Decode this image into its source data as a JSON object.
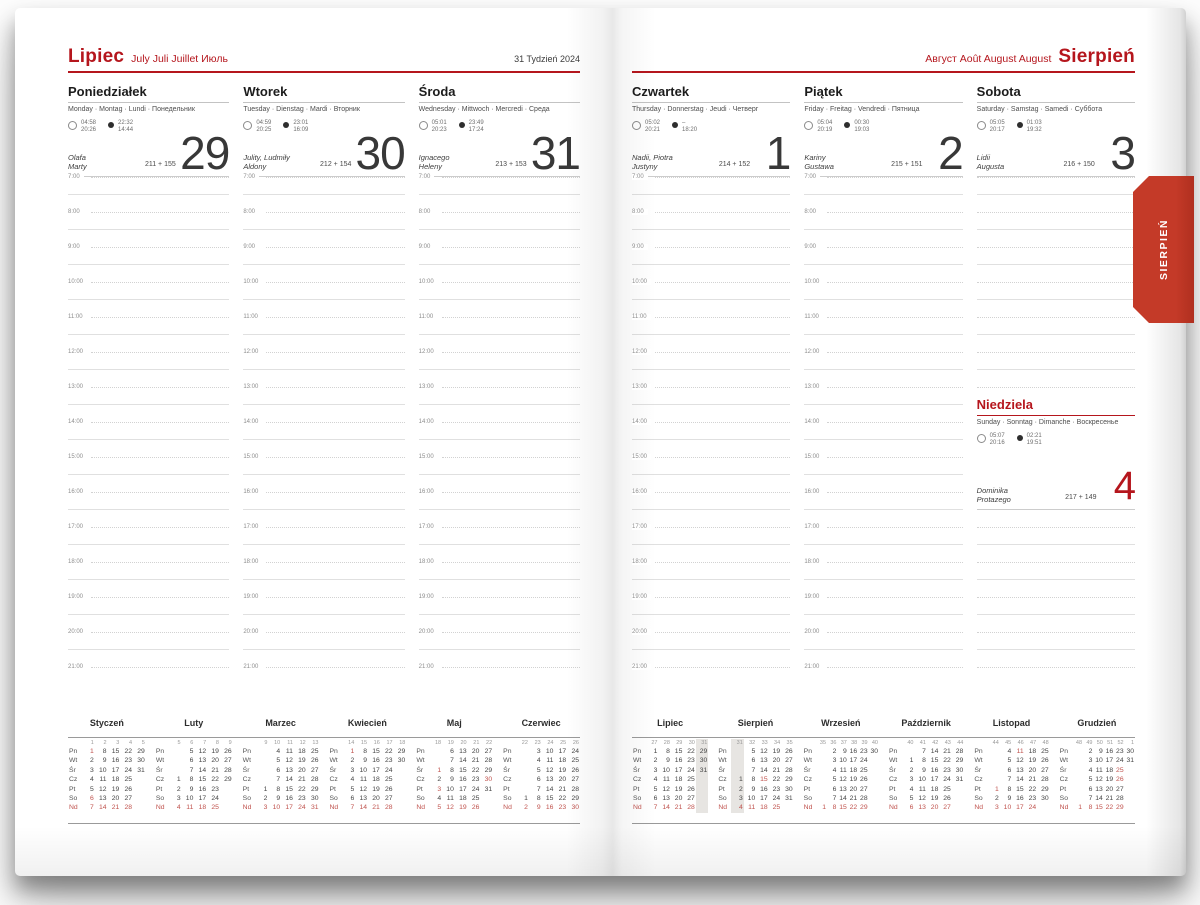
{
  "colors": {
    "accent_red": "#b5161d",
    "calendar_red": "#c0534e",
    "tab_red": "#c43a28",
    "highlight_gray": "#e7e5e2"
  },
  "left_page": {
    "title": "Lipiec",
    "title_translations": "July Juli Juillet Июль",
    "week_label": "31 Tydzień 2024",
    "days": [
      {
        "id": "poniedzialek",
        "name": "Poniedziałek",
        "translations": "Monday · Montag · Lundi · Понедельник",
        "sun": [
          "04:58",
          "20:26"
        ],
        "moon": [
          "22:32",
          "14:44"
        ],
        "name_days": [
          "Olafa",
          "Marty"
        ],
        "day_numbers": "211 + 155",
        "date": "29"
      },
      {
        "id": "wtorek",
        "name": "Wtorek",
        "translations": "Tuesday · Dienstag · Mardi · Вторник",
        "sun": [
          "04:59",
          "20:25"
        ],
        "moon": [
          "23:01",
          "16:09"
        ],
        "name_days": [
          "Julity, Ludmiły",
          "Aldony"
        ],
        "day_numbers": "212 + 154",
        "date": "30"
      },
      {
        "id": "sroda",
        "name": "Środa",
        "translations": "Wednesday · Mittwoch · Mercredi · Среда",
        "sun": [
          "05:01",
          "20:23"
        ],
        "moon": [
          "23:49",
          "17:24"
        ],
        "name_days": [
          "Ignacego",
          "Heleny"
        ],
        "day_numbers": "213 + 153",
        "date": "31"
      }
    ]
  },
  "right_page": {
    "title_translations": "Август Août August August",
    "title": "Sierpień",
    "days": [
      {
        "id": "czwartek",
        "name": "Czwartek",
        "translations": "Thursday · Donnerstag · Jeudi · Четверг",
        "sun": [
          "05:02",
          "20:21"
        ],
        "moon": [
          "–",
          "18:20"
        ],
        "name_days": [
          "Nadii, Piotra",
          "Justyny"
        ],
        "day_numbers": "214 + 152",
        "date": "1"
      },
      {
        "id": "piatek",
        "name": "Piątek",
        "translations": "Friday · Freitag · Vendredi · Пятница",
        "sun": [
          "05:04",
          "20:19"
        ],
        "moon": [
          "00:30",
          "19:03"
        ],
        "name_days": [
          "Kariny",
          "Gustawa"
        ],
        "day_numbers": "215 + 151",
        "date": "2"
      },
      {
        "id": "sobota",
        "name": "Sobota",
        "translations": "Saturday · Samstag · Samedi · Суббота",
        "sun": [
          "05:05",
          "20:17"
        ],
        "moon": [
          "01:03",
          "19:32"
        ],
        "name_days": [
          "Lidii",
          "Augusta"
        ],
        "day_numbers": "216 + 150",
        "date": "3"
      }
    ],
    "sunday": {
      "id": "niedziela",
      "name": "Niedziela",
      "translations": "Sunday · Sonntag · Dimanche · Воскресенье",
      "sun": [
        "05:07",
        "20:16"
      ],
      "moon": [
        "02:21",
        "19:51"
      ],
      "name_days": [
        "Dominika",
        "Protazego"
      ],
      "day_numbers": "217 + 149",
      "date": "4"
    }
  },
  "side_tab": {
    "label": "SIERPIEŃ"
  },
  "hours": [
    "7:00",
    "8:00",
    "9:00",
    "10:00",
    "11:00",
    "12:00",
    "13:00",
    "14:00",
    "15:00",
    "16:00",
    "17:00",
    "18:00",
    "19:00",
    "20:00",
    "21:00"
  ],
  "mini_calendars": {
    "row_labels": [
      "Pn",
      "Wt",
      "Śr",
      "Cz",
      "Pt",
      "So",
      "Nd"
    ],
    "left": [
      {
        "id": "styczen",
        "name": "Styczeń",
        "weeks": [
          "1",
          "2",
          "3",
          "4",
          "5"
        ],
        "highlight": -1,
        "rows": [
          [
            "*1",
            "8",
            "15",
            "22",
            "29"
          ],
          [
            "2",
            "9",
            "16",
            "23",
            "30"
          ],
          [
            "3",
            "10",
            "17",
            "24",
            "31"
          ],
          [
            "4",
            "11",
            "18",
            "25",
            ""
          ],
          [
            "5",
            "12",
            "19",
            "26",
            ""
          ],
          [
            "*6",
            "13",
            "20",
            "27",
            ""
          ],
          [
            "*7",
            "*14",
            "*21",
            "*28",
            ""
          ]
        ]
      },
      {
        "id": "luty",
        "name": "Luty",
        "weeks": [
          "5",
          "6",
          "7",
          "8",
          "9"
        ],
        "highlight": -1,
        "rows": [
          [
            "",
            "5",
            "12",
            "19",
            "26"
          ],
          [
            "",
            "6",
            "13",
            "20",
            "27"
          ],
          [
            "",
            "7",
            "14",
            "21",
            "28"
          ],
          [
            "1",
            "8",
            "15",
            "22",
            "29"
          ],
          [
            "2",
            "9",
            "16",
            "23",
            ""
          ],
          [
            "3",
            "10",
            "17",
            "24",
            ""
          ],
          [
            "*4",
            "*11",
            "*18",
            "*25",
            ""
          ]
        ]
      },
      {
        "id": "marzec",
        "name": "Marzec",
        "weeks": [
          "9",
          "10",
          "11",
          "12",
          "13"
        ],
        "highlight": -1,
        "rows": [
          [
            "",
            "4",
            "11",
            "18",
            "25"
          ],
          [
            "",
            "5",
            "12",
            "19",
            "26"
          ],
          [
            "",
            "6",
            "13",
            "20",
            "27"
          ],
          [
            "",
            "7",
            "14",
            "21",
            "28"
          ],
          [
            "1",
            "8",
            "15",
            "22",
            "29"
          ],
          [
            "2",
            "9",
            "16",
            "23",
            "30"
          ],
          [
            "*3",
            "*10",
            "*17",
            "*24",
            "*31"
          ]
        ]
      },
      {
        "id": "kwiecien",
        "name": "Kwiecień",
        "weeks": [
          "14",
          "15",
          "16",
          "17",
          "18"
        ],
        "highlight": -1,
        "rows": [
          [
            "*1",
            "8",
            "15",
            "22",
            "29"
          ],
          [
            "2",
            "9",
            "16",
            "23",
            "30"
          ],
          [
            "3",
            "10",
            "17",
            "24",
            ""
          ],
          [
            "4",
            "11",
            "18",
            "25",
            ""
          ],
          [
            "5",
            "12",
            "19",
            "26",
            ""
          ],
          [
            "6",
            "13",
            "20",
            "27",
            ""
          ],
          [
            "*7",
            "*14",
            "*21",
            "*28",
            ""
          ]
        ]
      },
      {
        "id": "maj",
        "name": "Maj",
        "weeks": [
          "18",
          "19",
          "20",
          "21",
          "22"
        ],
        "highlight": -1,
        "rows": [
          [
            "",
            "6",
            "13",
            "20",
            "27"
          ],
          [
            "",
            "7",
            "14",
            "21",
            "28"
          ],
          [
            "*1",
            "8",
            "15",
            "22",
            "29"
          ],
          [
            "2",
            "9",
            "16",
            "23",
            "*30"
          ],
          [
            "*3",
            "10",
            "17",
            "24",
            "31"
          ],
          [
            "4",
            "11",
            "18",
            "25",
            ""
          ],
          [
            "*5",
            "*12",
            "*19",
            "*26",
            ""
          ]
        ]
      },
      {
        "id": "czerwiec",
        "name": "Czerwiec",
        "weeks": [
          "22",
          "23",
          "24",
          "25",
          "26"
        ],
        "highlight": -1,
        "rows": [
          [
            "",
            "3",
            "10",
            "17",
            "24"
          ],
          [
            "",
            "4",
            "11",
            "18",
            "25"
          ],
          [
            "",
            "5",
            "12",
            "19",
            "26"
          ],
          [
            "",
            "6",
            "13",
            "20",
            "27"
          ],
          [
            "",
            "7",
            "14",
            "21",
            "28"
          ],
          [
            "1",
            "8",
            "15",
            "22",
            "29"
          ],
          [
            "*2",
            "*9",
            "*16",
            "*23",
            "*30"
          ]
        ]
      }
    ],
    "right": [
      {
        "id": "lipiec",
        "name": "Lipiec",
        "weeks": [
          "27",
          "28",
          "29",
          "30",
          "31"
        ],
        "highlight": 4,
        "rows": [
          [
            "1",
            "8",
            "15",
            "22",
            "29"
          ],
          [
            "2",
            "9",
            "16",
            "23",
            "30"
          ],
          [
            "3",
            "10",
            "17",
            "24",
            "31"
          ],
          [
            "4",
            "11",
            "18",
            "25",
            ""
          ],
          [
            "5",
            "12",
            "19",
            "26",
            ""
          ],
          [
            "6",
            "13",
            "20",
            "27",
            ""
          ],
          [
            "*7",
            "*14",
            "*21",
            "*28",
            ""
          ]
        ]
      },
      {
        "id": "sierpien",
        "name": "Sierpień",
        "weeks": [
          "31",
          "32",
          "33",
          "34",
          "35"
        ],
        "highlight": 0,
        "rows": [
          [
            "",
            "5",
            "12",
            "19",
            "26"
          ],
          [
            "",
            "6",
            "13",
            "20",
            "27"
          ],
          [
            "",
            "7",
            "14",
            "21",
            "28"
          ],
          [
            "1",
            "8",
            "*15",
            "22",
            "29"
          ],
          [
            "2",
            "9",
            "16",
            "23",
            "30"
          ],
          [
            "3",
            "10",
            "17",
            "24",
            "31"
          ],
          [
            "*4",
            "*11",
            "*18",
            "*25",
            ""
          ]
        ]
      },
      {
        "id": "wrzesien",
        "name": "Wrzesień",
        "weeks": [
          "35",
          "36",
          "37",
          "38",
          "39",
          "40"
        ],
        "highlight": -1,
        "rows": [
          [
            "",
            "2",
            "9",
            "16",
            "23",
            "30"
          ],
          [
            "",
            "3",
            "10",
            "17",
            "24",
            ""
          ],
          [
            "",
            "4",
            "11",
            "18",
            "25",
            ""
          ],
          [
            "",
            "5",
            "12",
            "19",
            "26",
            ""
          ],
          [
            "",
            "6",
            "13",
            "20",
            "27",
            ""
          ],
          [
            "",
            "7",
            "14",
            "21",
            "28",
            ""
          ],
          [
            "*1",
            "*8",
            "*15",
            "*22",
            "*29",
            ""
          ]
        ]
      },
      {
        "id": "pazdziernik",
        "name": "Październik",
        "weeks": [
          "40",
          "41",
          "42",
          "43",
          "44"
        ],
        "highlight": -1,
        "rows": [
          [
            "",
            "7",
            "14",
            "21",
            "28"
          ],
          [
            "1",
            "8",
            "15",
            "22",
            "29"
          ],
          [
            "2",
            "9",
            "16",
            "23",
            "30"
          ],
          [
            "3",
            "10",
            "17",
            "24",
            "31"
          ],
          [
            "4",
            "11",
            "18",
            "25",
            ""
          ],
          [
            "5",
            "12",
            "19",
            "26",
            ""
          ],
          [
            "*6",
            "*13",
            "*20",
            "*27",
            ""
          ]
        ]
      },
      {
        "id": "listopad",
        "name": "Listopad",
        "weeks": [
          "44",
          "45",
          "46",
          "47",
          "48"
        ],
        "highlight": -1,
        "rows": [
          [
            "",
            "4",
            "*11",
            "18",
            "25"
          ],
          [
            "",
            "5",
            "12",
            "19",
            "26"
          ],
          [
            "",
            "6",
            "13",
            "20",
            "27"
          ],
          [
            "",
            "7",
            "14",
            "21",
            "28"
          ],
          [
            "*1",
            "8",
            "15",
            "22",
            "29"
          ],
          [
            "2",
            "9",
            "16",
            "23",
            "30"
          ],
          [
            "*3",
            "*10",
            "*17",
            "*24",
            ""
          ]
        ]
      },
      {
        "id": "grudzien",
        "name": "Grudzień",
        "weeks": [
          "48",
          "49",
          "50",
          "51",
          "52",
          "1"
        ],
        "highlight": -1,
        "rows": [
          [
            "",
            "2",
            "9",
            "16",
            "23",
            "30"
          ],
          [
            "",
            "3",
            "10",
            "17",
            "24",
            "31"
          ],
          [
            "",
            "4",
            "11",
            "18",
            "*25",
            ""
          ],
          [
            "",
            "5",
            "12",
            "19",
            "*26",
            ""
          ],
          [
            "",
            "6",
            "13",
            "20",
            "27",
            ""
          ],
          [
            "",
            "7",
            "14",
            "21",
            "28",
            ""
          ],
          [
            "*1",
            "*8",
            "*15",
            "*22",
            "*29",
            ""
          ]
        ]
      }
    ]
  }
}
